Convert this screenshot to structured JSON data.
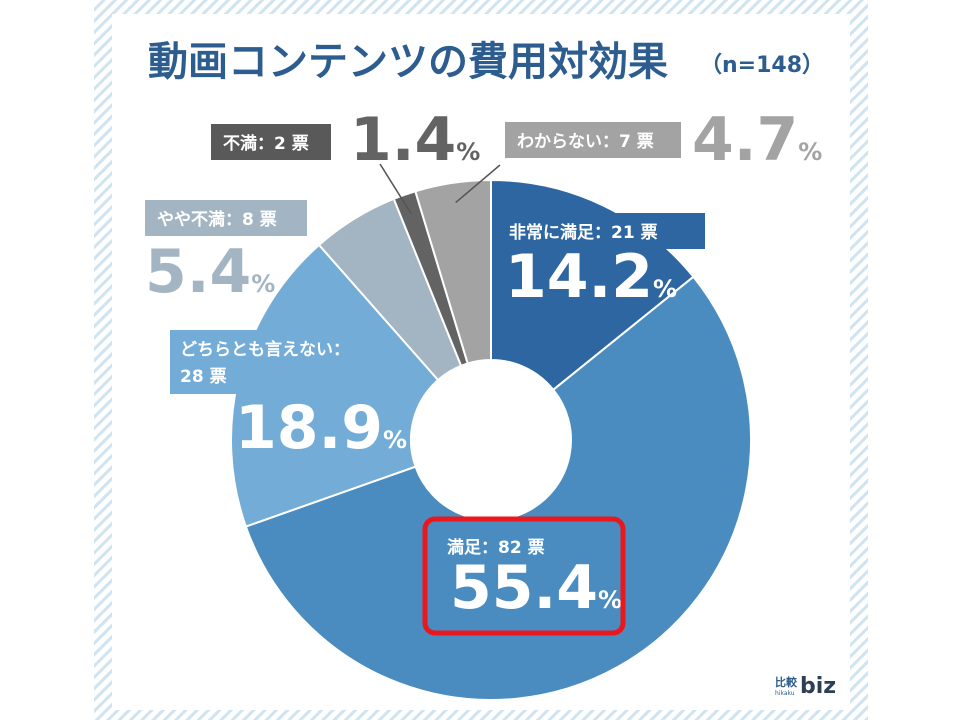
{
  "title": "動画コンテンツの費用対効果",
  "sample": "（n=148）",
  "chart_data": {
    "type": "pie",
    "donut": true,
    "title": "動画コンテンツの費用対効果",
    "n": 148,
    "slices": [
      {
        "label": "非常に満足：21 票",
        "category": "非常に満足",
        "votes": 21,
        "value": 14.2,
        "percent_text": "14.2",
        "color": "#2d66a0"
      },
      {
        "label": "満足：82 票",
        "category": "満足",
        "votes": 82,
        "value": 55.4,
        "percent_text": "55.4",
        "color": "#4b8cc0",
        "highlighted": true
      },
      {
        "label": "どちらとも言えない：28 票",
        "category": "どちらとも言えない",
        "votes": 28,
        "value": 18.9,
        "percent_text": "18.9",
        "color": "#74acd8"
      },
      {
        "label": "やや不満：8 票",
        "category": "やや不満",
        "votes": 8,
        "value": 5.4,
        "percent_text": "5.4",
        "color": "#a3b4c2"
      },
      {
        "label": "不満：2 票",
        "category": "不満",
        "votes": 2,
        "value": 1.4,
        "percent_text": "1.4",
        "color": "#636363"
      },
      {
        "label": "わからない：7 票",
        "category": "わからない",
        "votes": 7,
        "value": 4.7,
        "percent_text": "4.7",
        "color": "#a3a3a3"
      }
    ],
    "percent_unit": "%",
    "highlight_color": "#e8181e"
  },
  "logo": {
    "main": "biz",
    "kanji": "比較",
    "sub": "hikaku"
  }
}
